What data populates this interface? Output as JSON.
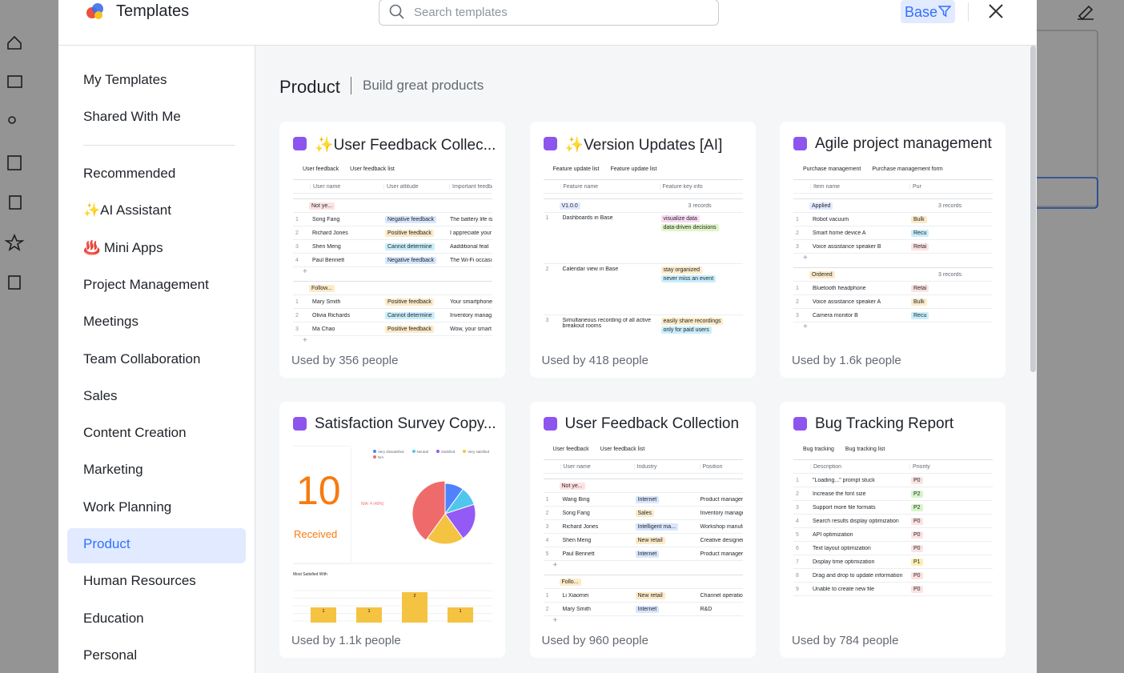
{
  "header": {
    "title": "Templates",
    "search_placeholder": "Search templates",
    "filter": "Base"
  },
  "nav_top": [
    "My Templates",
    "Shared With Me"
  ],
  "nav": [
    "Recommended",
    "✨AI Assistant",
    "♨️ Mini Apps",
    "Project Management",
    "Meetings",
    "Team Collaboration",
    "Sales",
    "Content Creation",
    "Marketing",
    "Work Planning",
    "Product",
    "Human Resources",
    "Education",
    "Personal"
  ],
  "selected": 10,
  "section": {
    "title": "Product",
    "subtitle": "Build great products"
  },
  "cards": [
    {
      "title": "✨User Feedback Collec...",
      "used": "Used by 356 people",
      "thumb": {
        "tabs": [
          "User feedback",
          "User feedback list"
        ],
        "columns": [
          "User name",
          "User attitude",
          "Important feedback"
        ],
        "groups": [
          {
            "name": "Not ye...",
            "color": "#fde2e2",
            "rows": [
              [
                "1",
                "Song Fang",
                {
                  "text": "Negative feedback",
                  "color": "#d9e6fd"
                },
                "The battery life is"
              ],
              [
                "2",
                "Richard Jones",
                {
                  "text": "Positive feedback",
                  "color": "#fdebc8"
                },
                "I appreciate your"
              ],
              [
                "3",
                "Shen Meng",
                {
                  "text": "Cannot determine",
                  "color": "#c9eefb"
                },
                "Aadditional feat"
              ],
              [
                "4",
                "Paul Bennett",
                {
                  "text": "Negative feedback",
                  "color": "#d9e6fd"
                },
                "The Wi-Fi occasi"
              ]
            ]
          },
          {
            "name": "Follow...",
            "color": "#fdebc8",
            "rows": [
              [
                "1",
                "Mary Smith",
                {
                  "text": "Positive feedback",
                  "color": "#fdebc8"
                },
                "Your smartphone"
              ],
              [
                "2",
                "Olivia Richards",
                {
                  "text": "Cannot determine",
                  "color": "#c9eefb"
                },
                "Inventory manag"
              ],
              [
                "3",
                "Ma Chao",
                {
                  "text": "Positive feedback",
                  "color": "#fdebc8"
                },
                "Wow, your smart"
              ]
            ]
          }
        ]
      }
    },
    {
      "title": "✨Version Updates [AI]",
      "used": "Used by 418 people",
      "thumb": {
        "tabs": [
          "Feature update list",
          "Feature update list"
        ],
        "columns": [
          "Feature name",
          "Feature key info"
        ],
        "groups": [
          {
            "name": "V1.0.0",
            "color": "#e1eaff",
            "count": "3 records",
            "rows": [
              [
                "1",
                "Dashboards in Base",
                [
                  {
                    "text": "visualize data",
                    "color": "#f8dcf3"
                  },
                  {
                    "text": "data-driven decisions",
                    "color": "#dff5c8"
                  }
                ]
              ],
              [
                "2",
                "Calendar view in Base",
                [
                  {
                    "text": "stay organized",
                    "color": "#fdebc8"
                  },
                  {
                    "text": "never miss an event",
                    "color": "#c9eefb"
                  }
                ]
              ],
              [
                "3",
                "Simultaneous recording of all active breakout rooms",
                [
                  {
                    "text": "easily share recordings",
                    "color": "#fdebc8"
                  },
                  {
                    "text": "only for paid users",
                    "color": "#c9eefb"
                  }
                ]
              ]
            ]
          }
        ]
      }
    },
    {
      "title": "Agile project management",
      "used": "Used by 1.6k people",
      "thumb": {
        "tabs": [
          "Purchase management",
          "Purchase management form"
        ],
        "columns": [
          "Item name",
          "Pur"
        ],
        "groups": [
          {
            "name": "Applied",
            "color": "#e1eaff",
            "count": "3 records",
            "rows": [
              [
                "1",
                "Robot vacuum",
                {
                  "text": "Bulk",
                  "color": "#fdebc8"
                }
              ],
              [
                "2",
                "Smart home device A",
                {
                  "text": "Recu",
                  "color": "#c9eefb"
                }
              ],
              [
                "3",
                "Voice assistance speaker B",
                {
                  "text": "Retai",
                  "color": "#fde2e2"
                }
              ]
            ]
          },
          {
            "name": "Ordered",
            "color": "#fdebc8",
            "count": "3 records",
            "rows": [
              [
                "1",
                "Bluetooth headphone",
                {
                  "text": "Retai",
                  "color": "#fde2e2"
                }
              ],
              [
                "2",
                "Voice assistance speaker A",
                {
                  "text": "Bulk",
                  "color": "#fdebc8"
                }
              ],
              [
                "3",
                "Camera monitor B",
                {
                  "text": "Recu",
                  "color": "#c9eefb"
                }
              ]
            ]
          }
        ]
      }
    },
    {
      "title": "Satisfaction Survey Copy...",
      "used": "Used by 1.1k people",
      "chart": {
        "type": "pie",
        "total": "10",
        "total_label": "Received",
        "annotation": "N/A: 4 (40%)",
        "series": [
          {
            "name": "Very dissatisfied",
            "color": "#4e83fd",
            "value": 1
          },
          {
            "name": "Neutral",
            "color": "#50c6ee",
            "value": 1
          },
          {
            "name": "Satisfied",
            "color": "#935af6",
            "value": 2
          },
          {
            "name": "Very satisfied",
            "color": "#f5c342",
            "value": 2
          },
          {
            "name": "N/A",
            "color": "#ef6b6b",
            "value": 4
          }
        ],
        "bar_title": "Most Satisfied With",
        "bars": [
          1,
          1,
          2,
          1
        ],
        "bar_color": "#f5c342"
      }
    },
    {
      "title": "User Feedback Collection",
      "used": "Used by 960 people",
      "thumb": {
        "tabs": [
          "User feedback",
          "User feedback list"
        ],
        "columns": [
          "User name",
          "Industry",
          "Position"
        ],
        "groups": [
          {
            "name": "Not ye...",
            "color": "#fde2e2",
            "rows": [
              [
                "1",
                "Wang Bing",
                {
                  "text": "Internet",
                  "color": "#d9e6fd"
                },
                "Product manager"
              ],
              [
                "2",
                "Song Fang",
                {
                  "text": "Sales",
                  "color": "#fdebc8"
                },
                "Inventory manager"
              ],
              [
                "3",
                "Richard Jones",
                {
                  "text": "Intelligent ma...",
                  "color": "#d9e6fd"
                },
                "Workshop manufact"
              ],
              [
                "4",
                "Shen Meng",
                {
                  "text": "New retail",
                  "color": "#fdebc8"
                },
                "Creative designer"
              ],
              [
                "5",
                "Paul Bennett",
                {
                  "text": "Internet",
                  "color": "#d9e6fd"
                },
                "Product manager"
              ]
            ]
          },
          {
            "name": "Follo...",
            "color": "#fdebc8",
            "rows": [
              [
                "1",
                "Li Xiaomei",
                {
                  "text": "New retail",
                  "color": "#fdebc8"
                },
                "Channel operations"
              ],
              [
                "2",
                "Mary Smith",
                {
                  "text": "Internet",
                  "color": "#d9e6fd"
                },
                "R&D"
              ]
            ]
          }
        ]
      }
    },
    {
      "title": "Bug Tracking Report",
      "used": "Used by 784 people",
      "thumb": {
        "tabs": [
          "Bug tracking",
          "Bug tracking list"
        ],
        "columns": [
          "Description",
          "Priority"
        ],
        "groups": [
          {
            "rows": [
              [
                "1",
                "\"Loading...\" prompt stuck",
                {
                  "text": "P0",
                  "color": "#fde2e2"
                }
              ],
              [
                "2",
                "Increase the font size",
                {
                  "text": "P2",
                  "color": "#d5f6c8"
                }
              ],
              [
                "3",
                "Support more file formats",
                {
                  "text": "P2",
                  "color": "#d5f6c8"
                }
              ],
              [
                "4",
                "Search results display optimization",
                {
                  "text": "P0",
                  "color": "#fde2e2"
                }
              ],
              [
                "5",
                "API optimization",
                {
                  "text": "P0",
                  "color": "#fde2e2"
                }
              ],
              [
                "6",
                "Text layout optimization",
                {
                  "text": "P0",
                  "color": "#fde2e2"
                }
              ],
              [
                "7",
                "Display time optimization",
                {
                  "text": "P1",
                  "color": "#fcefb4"
                }
              ],
              [
                "8",
                "Drag and drop to update information",
                {
                  "text": "P0",
                  "color": "#fde2e2"
                }
              ],
              [
                "9",
                "Unable to create new file",
                {
                  "text": "P0",
                  "color": "#fde2e2"
                }
              ]
            ]
          }
        ]
      }
    }
  ]
}
